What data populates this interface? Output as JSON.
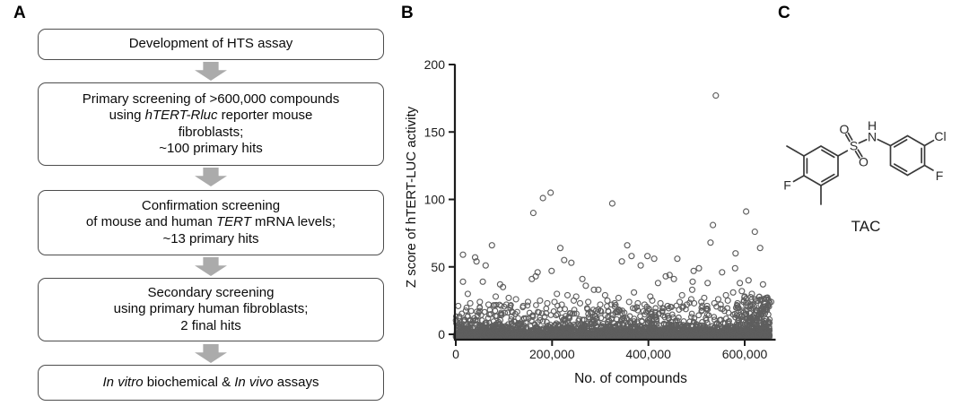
{
  "panels": {
    "a_label": "A",
    "b_label": "B",
    "c_label": "C"
  },
  "flowchart": {
    "boxes": [
      {
        "lines": [
          {
            "segs": [
              {
                "t": "Development of HTS assay"
              }
            ]
          }
        ]
      },
      {
        "lines": [
          {
            "segs": [
              {
                "t": "Primary screening of >600,000 compounds"
              }
            ]
          },
          {
            "segs": [
              {
                "t": "using "
              },
              {
                "t": "hTERT-Rluc",
                "italic": true
              },
              {
                "t": " reporter mouse"
              }
            ]
          },
          {
            "segs": [
              {
                "t": "fibroblasts;"
              }
            ]
          },
          {
            "segs": [
              {
                "t": "~100 primary hits"
              }
            ]
          }
        ]
      },
      {
        "lines": [
          {
            "segs": [
              {
                "t": "Confirmation screening"
              }
            ]
          },
          {
            "segs": [
              {
                "t": "of mouse and human "
              },
              {
                "t": "TERT",
                "italic": true
              },
              {
                "t": " mRNA levels;"
              }
            ]
          },
          {
            "segs": [
              {
                "t": "~13 primary hits"
              }
            ]
          }
        ]
      },
      {
        "lines": [
          {
            "segs": [
              {
                "t": "Secondary screening"
              }
            ]
          },
          {
            "segs": [
              {
                "t": "using primary human fibroblasts;"
              }
            ]
          },
          {
            "segs": [
              {
                "t": "2 final hits"
              }
            ]
          }
        ]
      },
      {
        "lines": [
          {
            "segs": [
              {
                "t": "In vitro",
                "italic": true
              },
              {
                "t": " biochemical & "
              },
              {
                "t": "In vivo",
                "italic": true
              },
              {
                "t": " assays"
              }
            ]
          }
        ]
      }
    ]
  },
  "chart_data": {
    "type": "scatter",
    "title": "",
    "xlabel": "No. of compounds",
    "ylabel": "Z score of hTERT-LUC activity",
    "xlim": [
      0,
      660000
    ],
    "ylim": [
      0,
      200
    ],
    "xticks": [
      0,
      200000,
      400000,
      600000
    ],
    "xtick_labels": [
      "0",
      "200,000",
      "400,000",
      "600,000"
    ],
    "yticks": [
      0,
      50,
      100,
      150,
      200
    ],
    "ytick_labels": [
      "0",
      "50",
      "100",
      "150",
      "200"
    ],
    "grid": false,
    "legend": null,
    "axis_color": "#1c1c1c",
    "marker": {
      "shape": "open-circle",
      "color": "#5e5e5e",
      "radius_px": 3
    },
    "top_hit": {
      "x": 540000,
      "y": 177
    },
    "outliers": [
      [
        5000,
        21
      ],
      [
        15000,
        59
      ],
      [
        15000,
        39
      ],
      [
        25000,
        30
      ],
      [
        30000,
        23
      ],
      [
        40000,
        57
      ],
      [
        43000,
        54
      ],
      [
        50000,
        24
      ],
      [
        56000,
        39
      ],
      [
        62000,
        51
      ],
      [
        68000,
        22
      ],
      [
        75000,
        66
      ],
      [
        83000,
        28
      ],
      [
        92000,
        37
      ],
      [
        98000,
        35
      ],
      [
        105000,
        22
      ],
      [
        110000,
        27
      ],
      [
        125000,
        26
      ],
      [
        140000,
        21
      ],
      [
        150000,
        24
      ],
      [
        158000,
        41
      ],
      [
        161000,
        90
      ],
      [
        166000,
        43
      ],
      [
        170000,
        46
      ],
      [
        175000,
        25
      ],
      [
        181000,
        101
      ],
      [
        190000,
        23
      ],
      [
        197000,
        105
      ],
      [
        199000,
        47
      ],
      [
        205000,
        24
      ],
      [
        210000,
        30
      ],
      [
        217000,
        64
      ],
      [
        220000,
        22
      ],
      [
        225000,
        55
      ],
      [
        232000,
        29
      ],
      [
        240000,
        53
      ],
      [
        245000,
        25
      ],
      [
        250000,
        28
      ],
      [
        258000,
        23
      ],
      [
        263000,
        41
      ],
      [
        270000,
        36
      ],
      [
        275000,
        24
      ],
      [
        287000,
        33
      ],
      [
        296000,
        33
      ],
      [
        300000,
        22
      ],
      [
        310000,
        29
      ],
      [
        315000,
        25
      ],
      [
        325000,
        97
      ],
      [
        330000,
        23
      ],
      [
        338000,
        27
      ],
      [
        345000,
        54
      ],
      [
        356000,
        66
      ],
      [
        360000,
        24
      ],
      [
        365000,
        58
      ],
      [
        370000,
        31
      ],
      [
        378000,
        23
      ],
      [
        384000,
        51
      ],
      [
        392000,
        22
      ],
      [
        398000,
        58
      ],
      [
        404000,
        28
      ],
      [
        408000,
        25
      ],
      [
        412000,
        56
      ],
      [
        420000,
        38
      ],
      [
        425000,
        23
      ],
      [
        436000,
        43
      ],
      [
        440000,
        21
      ],
      [
        444000,
        44
      ],
      [
        453000,
        41
      ],
      [
        460000,
        56
      ],
      [
        465000,
        24
      ],
      [
        470000,
        29
      ],
      [
        480000,
        22
      ],
      [
        489000,
        26
      ],
      [
        491000,
        33
      ],
      [
        492000,
        39
      ],
      [
        494000,
        47
      ],
      [
        495000,
        23
      ],
      [
        505000,
        49
      ],
      [
        510000,
        24
      ],
      [
        516000,
        27
      ],
      [
        522000,
        21
      ],
      [
        523000,
        38
      ],
      [
        529000,
        68
      ],
      [
        534000,
        81
      ],
      [
        537000,
        23
      ],
      [
        540000,
        177
      ],
      [
        545000,
        26
      ],
      [
        550000,
        22
      ],
      [
        553000,
        46
      ],
      [
        561000,
        29
      ],
      [
        565000,
        25
      ],
      [
        576000,
        31
      ],
      [
        580000,
        49
      ],
      [
        581000,
        60
      ],
      [
        585000,
        23
      ],
      [
        590000,
        38
      ],
      [
        594000,
        32
      ],
      [
        598000,
        24
      ],
      [
        600000,
        28
      ],
      [
        603000,
        91
      ],
      [
        608000,
        40
      ],
      [
        612000,
        22
      ],
      [
        615000,
        30
      ],
      [
        621000,
        76
      ],
      [
        625000,
        25
      ],
      [
        632000,
        64
      ],
      [
        638000,
        37
      ],
      [
        640000,
        23
      ],
      [
        645000,
        27
      ],
      [
        648000,
        21
      ],
      [
        650000,
        25
      ],
      [
        655000,
        24
      ]
    ],
    "baseline_band": {
      "description": "Dense band of ~600,000 screened compounds with Z scores mostly between -2 and 24; rendered as a statistically equivalent random sample",
      "dense_count": 2300,
      "mid_count": 330,
      "right_cluster_count": 90,
      "right_cluster_from": 595000,
      "x_max": 652000,
      "y_min": -2.2,
      "exp_scale": 3.3,
      "y_max": 24
    }
  },
  "molecule": {
    "name": "TAC",
    "atoms": {
      "s": "S",
      "o1": "O",
      "o2": "O",
      "n": "N",
      "h": "H",
      "f_left": "F",
      "cl": "Cl",
      "f_right": "F"
    }
  }
}
